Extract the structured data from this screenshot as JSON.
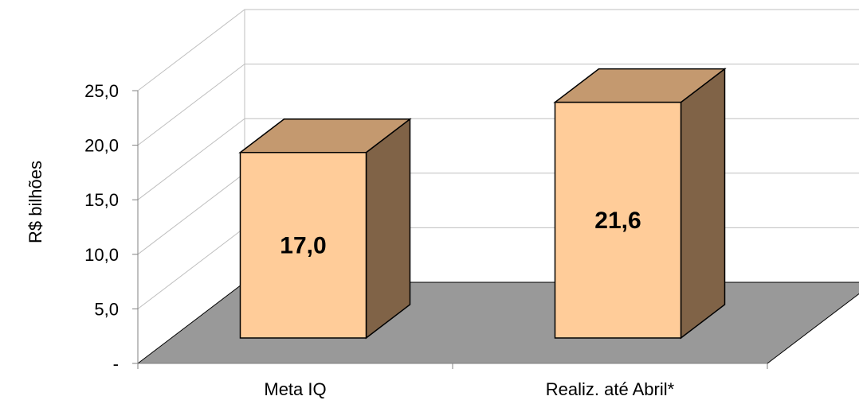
{
  "chart_data": {
    "type": "bar",
    "style": "3d-column",
    "title": "",
    "xlabel": "",
    "ylabel": "R$ bilhões",
    "categories": [
      "Meta IQ",
      "Realiz. até Abril*"
    ],
    "values": [
      17.0,
      21.6
    ],
    "data_labels": [
      "17,0",
      "21,6"
    ],
    "ylim": [
      0,
      25
    ],
    "y_ticks": [
      {
        "value": 0,
        "label": "-"
      },
      {
        "value": 5,
        "label": "5,0"
      },
      {
        "value": 10,
        "label": "10,0"
      },
      {
        "value": 15,
        "label": "15,0"
      },
      {
        "value": 20,
        "label": "20,0"
      },
      {
        "value": 25,
        "label": "25,0"
      }
    ],
    "grid": true,
    "legend": "none",
    "colors": {
      "bar_front": "#FFCC99",
      "bar_top": "#C4996F",
      "bar_side": "#806347",
      "floor": "#999999",
      "gridline": "#BFBFBF",
      "axis": "#808080"
    }
  }
}
